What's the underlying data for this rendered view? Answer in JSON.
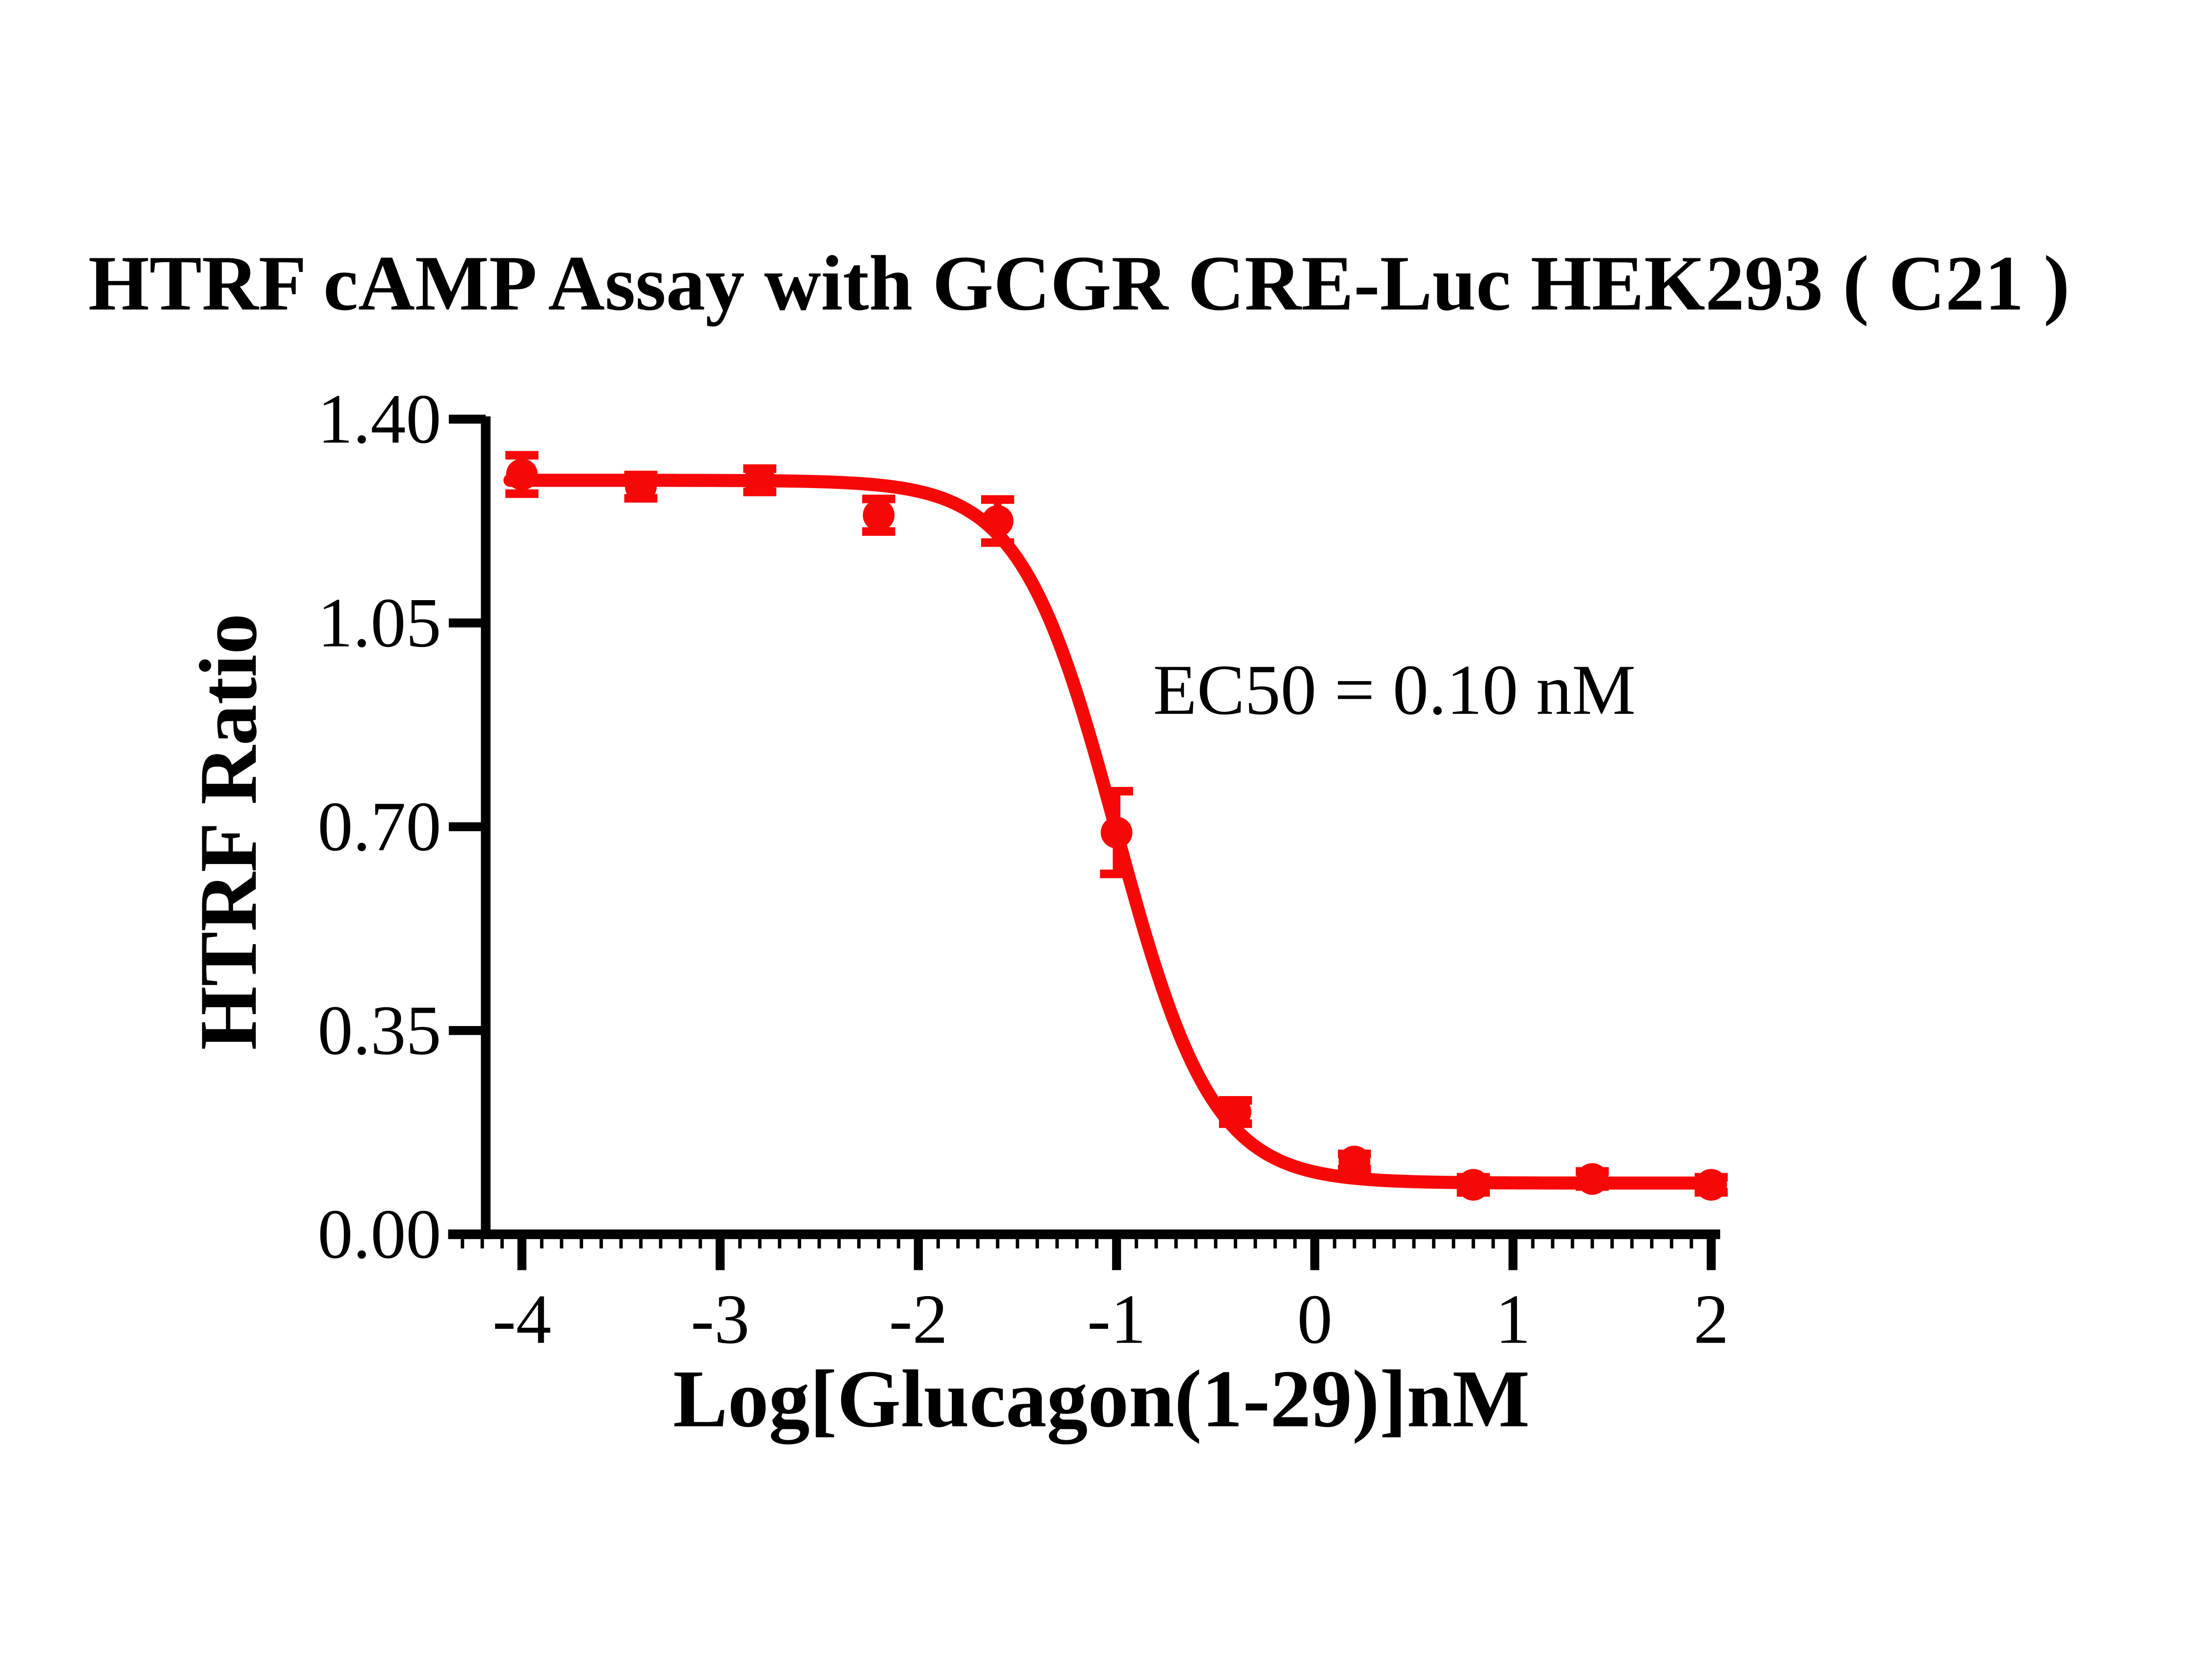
{
  "chart_data": {
    "type": "scatter",
    "title": "HTRF cAMP Assay with GCGR CRE-Luc HEK293 ( C21 )",
    "xlabel": "Log[Glucagon(1-29)]nM",
    "ylabel": "HTRF Ratio",
    "annotation": "EC50 = 0.10 nM",
    "ec50_nM": 0.1,
    "grid": false,
    "legend": false,
    "background": "#ffffff",
    "axis_color": "#000000",
    "x_axis": {
      "scale": "log10 concentration (nM)",
      "range": [
        -4.37,
        2.05
      ],
      "ticks": [
        -4,
        -3,
        -2,
        -1,
        0,
        1,
        2
      ],
      "tick_labels": [
        "-4",
        "-3",
        "-2",
        "-1",
        "0",
        "1",
        "2"
      ],
      "minor_tick_step": 0.1
    },
    "y_axis": {
      "range": [
        0,
        1.4
      ],
      "ticks": [
        0,
        0.35,
        0.7,
        1.05,
        1.4
      ],
      "tick_labels": [
        "0.00",
        "0.35",
        "0.70",
        "1.05",
        "1.40"
      ]
    },
    "series": [
      {
        "marker": "circle",
        "color": "#f70808",
        "points": [
          {
            "x": -4.0,
            "y": 1.305,
            "err": 0.033
          },
          {
            "x": -3.4,
            "y": 1.284,
            "err": 0.02
          },
          {
            "x": -2.8,
            "y": 1.295,
            "err": 0.02
          },
          {
            "x": -2.2,
            "y": 1.235,
            "err": 0.028
          },
          {
            "x": -1.6,
            "y": 1.225,
            "err": 0.037
          },
          {
            "x": -1.0,
            "y": 0.69,
            "err": 0.071
          },
          {
            "x": -0.4,
            "y": 0.21,
            "err": 0.02
          },
          {
            "x": 0.2,
            "y": 0.125,
            "err": 0.013
          },
          {
            "x": 0.8,
            "y": 0.085,
            "err": 0.013
          },
          {
            "x": 1.4,
            "y": 0.095,
            "err": 0.013
          },
          {
            "x": 2.0,
            "y": 0.085,
            "err": 0.013
          }
        ]
      }
    ],
    "fit_curve": {
      "model": "four-parameter logistic (decreasing)",
      "top": 1.295,
      "bottom": 0.088,
      "log_ec50": -1.0,
      "hill_slope": 1.8,
      "x_start": -4.06,
      "x_end": 2.04,
      "color": "#f70808"
    }
  }
}
